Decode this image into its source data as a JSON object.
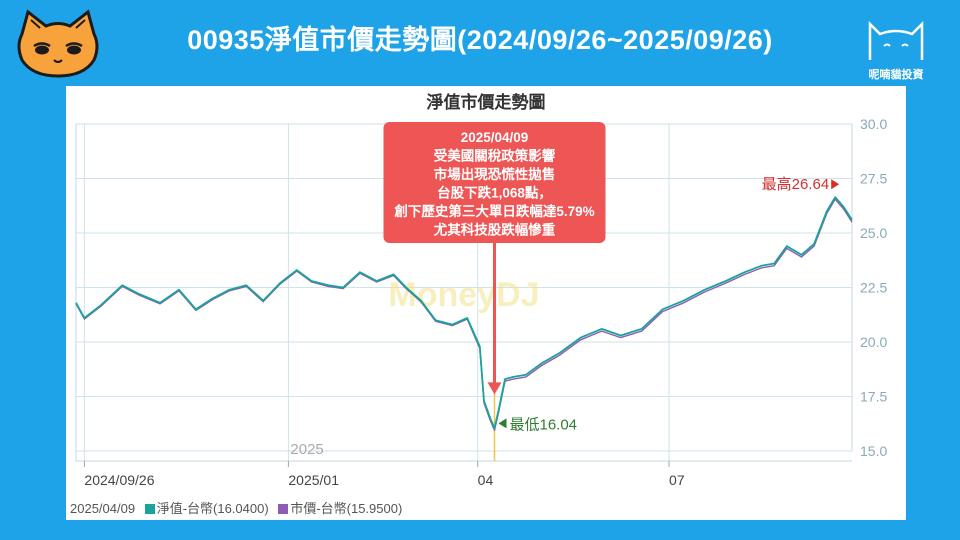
{
  "header": {
    "title": "00935淨值市價走勢圖(2024/09/26~2025/09/26)"
  },
  "brand": {
    "name": "呢喃貓投資"
  },
  "colors": {
    "background": "#1fa3e8",
    "nav": "#1aa39a",
    "price": "#8e5bb5",
    "annotation_bg": "#ee5555",
    "max": "#d32f2f",
    "min": "#2e7d32",
    "grid": "#cfe3ea",
    "axis_text": "#8aaab8"
  },
  "chart_data": {
    "type": "line",
    "title": "淨值市價走勢圖",
    "watermark": "MoneyDJ",
    "ylim": [
      15.0,
      30.0
    ],
    "y_ticks": [
      "30.0",
      "27.5",
      "25.0",
      "22.5",
      "20.0",
      "17.5",
      "15.0"
    ],
    "x_ticks": [
      {
        "date": "2024-09-26",
        "label": "2024/09/26"
      },
      {
        "date": "2025-01-01",
        "label": "2025/01"
      },
      {
        "date": "2025-04-01",
        "label": "04"
      },
      {
        "date": "2025-07-01",
        "label": "07"
      }
    ],
    "year_marker": {
      "date": "2025-01-01",
      "label": "2025"
    },
    "xlim": [
      "2024-09-22",
      "2025-09-26"
    ],
    "series": [
      {
        "name": "淨值-台幣",
        "x": [
          "2024-09-22",
          "2024-09-26",
          "2024-10-04",
          "2024-10-14",
          "2024-10-22",
          "2024-11-01",
          "2024-11-10",
          "2024-11-18",
          "2024-11-26",
          "2024-12-04",
          "2024-12-12",
          "2024-12-20",
          "2024-12-28",
          "2025-01-05",
          "2025-01-12",
          "2025-01-20",
          "2025-01-27",
          "2025-02-04",
          "2025-02-12",
          "2025-02-20",
          "2025-02-26",
          "2025-03-05",
          "2025-03-12",
          "2025-03-20",
          "2025-03-27",
          "2025-04-02",
          "2025-04-04",
          "2025-04-07",
          "2025-04-09",
          "2025-04-11",
          "2025-04-14",
          "2025-04-18",
          "2025-04-24",
          "2025-05-01",
          "2025-05-10",
          "2025-05-20",
          "2025-05-30",
          "2025-06-08",
          "2025-06-18",
          "2025-06-28",
          "2025-07-08",
          "2025-07-18",
          "2025-07-28",
          "2025-08-06",
          "2025-08-14",
          "2025-08-20",
          "2025-08-26",
          "2025-09-02",
          "2025-09-08",
          "2025-09-14",
          "2025-09-18",
          "2025-09-22",
          "2025-09-26"
        ],
        "values": [
          21.8,
          21.1,
          21.7,
          22.6,
          22.2,
          21.8,
          22.4,
          21.5,
          22.0,
          22.4,
          22.6,
          21.9,
          22.7,
          23.3,
          22.8,
          22.6,
          22.5,
          23.2,
          22.8,
          23.1,
          22.5,
          21.9,
          21.0,
          20.8,
          21.1,
          19.8,
          17.3,
          16.5,
          16.04,
          16.9,
          18.3,
          18.4,
          18.5,
          19.0,
          19.5,
          20.2,
          20.6,
          20.3,
          20.6,
          21.5,
          21.9,
          22.4,
          22.8,
          23.2,
          23.5,
          23.6,
          24.4,
          24.0,
          24.5,
          26.0,
          26.64,
          26.2,
          25.6
        ]
      },
      {
        "name": "市價-台幣",
        "x": [
          "2024-09-22",
          "2024-09-26",
          "2024-10-04",
          "2024-10-14",
          "2024-10-22",
          "2024-11-01",
          "2024-11-10",
          "2024-11-18",
          "2024-11-26",
          "2024-12-04",
          "2024-12-12",
          "2024-12-20",
          "2024-12-28",
          "2025-01-05",
          "2025-01-12",
          "2025-01-20",
          "2025-01-27",
          "2025-02-04",
          "2025-02-12",
          "2025-02-20",
          "2025-02-26",
          "2025-03-05",
          "2025-03-12",
          "2025-03-20",
          "2025-03-27",
          "2025-04-02",
          "2025-04-04",
          "2025-04-07",
          "2025-04-09",
          "2025-04-11",
          "2025-04-14",
          "2025-04-18",
          "2025-04-24",
          "2025-05-01",
          "2025-05-10",
          "2025-05-20",
          "2025-05-30",
          "2025-06-08",
          "2025-06-18",
          "2025-06-28",
          "2025-07-08",
          "2025-07-18",
          "2025-07-28",
          "2025-08-06",
          "2025-08-14",
          "2025-08-20",
          "2025-08-26",
          "2025-09-02",
          "2025-09-08",
          "2025-09-14",
          "2025-09-18",
          "2025-09-22",
          "2025-09-26"
        ],
        "values": [
          21.75,
          21.05,
          21.65,
          22.55,
          22.15,
          21.75,
          22.35,
          21.45,
          21.95,
          22.35,
          22.55,
          21.85,
          22.65,
          23.25,
          22.75,
          22.55,
          22.45,
          23.15,
          22.75,
          23.05,
          22.45,
          21.85,
          20.95,
          20.75,
          21.05,
          19.7,
          17.2,
          16.4,
          15.95,
          16.8,
          18.2,
          18.3,
          18.4,
          18.9,
          19.4,
          20.1,
          20.5,
          20.2,
          20.5,
          21.4,
          21.8,
          22.3,
          22.7,
          23.1,
          23.4,
          23.5,
          24.3,
          23.9,
          24.4,
          25.9,
          26.55,
          26.1,
          25.5
        ]
      }
    ],
    "annotations": {
      "event": {
        "date": "2025-04-09",
        "lines": [
          "2025/04/09",
          "受美國關稅政策影響",
          "市場出現恐慌性拋售",
          "台股下跌1,068點，",
          "創下歷史第三大單日跌幅達5.79%",
          "尤其科技股跌幅慘重"
        ]
      },
      "max": {
        "label": "最高26.64",
        "date": "2025-09-18",
        "value": 26.64
      },
      "min": {
        "label": "最低16.04",
        "date": "2025-04-09",
        "value": 16.04
      }
    },
    "footer": {
      "date": "2025/04/09",
      "nav_label": "淨值-台幣(16.0400)",
      "price_label": "市價-台幣(15.9500)"
    }
  }
}
